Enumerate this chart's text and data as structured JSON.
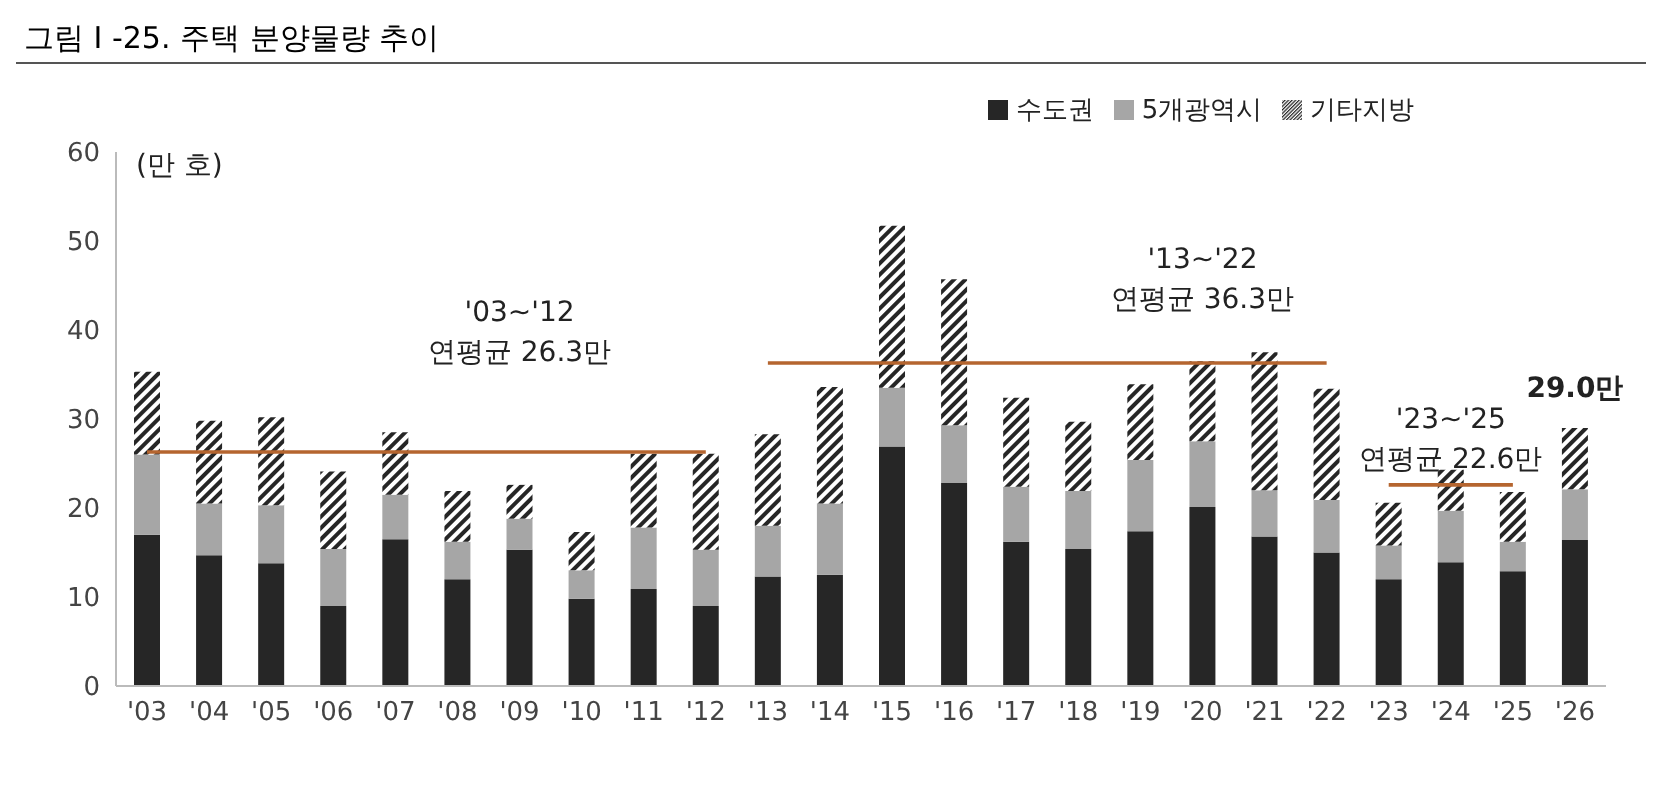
{
  "chart_data": {
    "type": "bar",
    "stacked": true,
    "title": "그림 I -25. 주택 분양물량 추이",
    "ylabel": "(만 호)",
    "categories": [
      "'03",
      "'04",
      "'05",
      "'06",
      "'07",
      "'08",
      "'09",
      "'10",
      "'11",
      "'12",
      "'13",
      "'14",
      "'15",
      "'16",
      "'17",
      "'18",
      "'19",
      "'20",
      "'21",
      "'22",
      "'23",
      "'24",
      "'25",
      "'26"
    ],
    "series": [
      {
        "name": "수도권",
        "color": "#262626",
        "values": [
          17,
          14.7,
          13.8,
          9,
          16.5,
          12,
          15.3,
          9.8,
          10.9,
          9,
          12.3,
          12.5,
          26.9,
          22.8,
          16.2,
          15.4,
          17.4,
          20.1,
          16.8,
          15,
          12,
          13.9,
          12.9,
          16.4
        ]
      },
      {
        "name": "5개광역시",
        "color": "#a6a6a6",
        "values": [
          9,
          5.8,
          6.5,
          6.4,
          5,
          4.2,
          3.5,
          3.2,
          6.9,
          6.3,
          5.7,
          8,
          6.6,
          6.5,
          6.2,
          6.5,
          8,
          7.4,
          5.2,
          5.9,
          3.8,
          5.8,
          3.3,
          5.7
        ]
      },
      {
        "name": "기타지방",
        "color": "#262626",
        "values": [
          9.3,
          9.3,
          9.9,
          8.7,
          7,
          5.7,
          3.8,
          4.3,
          8.3,
          10.8,
          10.3,
          13.1,
          18.2,
          16.4,
          10,
          7.8,
          8.5,
          9,
          15.5,
          12.5,
          4.8,
          4.6,
          5.6,
          6.9
        ]
      },
      {
        "type": "line",
        "color": "#b5652f",
        "values": [
          26.3,
          26.3,
          26.3,
          26.3,
          26.3,
          26.3,
          26.3,
          26.3,
          26.3,
          26.3,
          null,
          null,
          null,
          null,
          null,
          null,
          null,
          null,
          null,
          null,
          null,
          null,
          null,
          null
        ]
      },
      {
        "type": "line",
        "color": "#b5652f",
        "values": [
          null,
          null,
          null,
          null,
          null,
          null,
          null,
          null,
          null,
          null,
          36.3,
          36.3,
          36.3,
          36.3,
          36.3,
          36.3,
          36.3,
          36.3,
          36.3,
          36.3,
          null,
          null,
          null,
          null
        ]
      },
      {
        "type": "line",
        "color": "#b5652f",
        "values": [
          null,
          null,
          null,
          null,
          null,
          null,
          null,
          null,
          null,
          null,
          null,
          null,
          null,
          null,
          null,
          null,
          null,
          null,
          null,
          null,
          22.6,
          22.6,
          22.6,
          null
        ]
      }
    ],
    "ylim": [
      0,
      60
    ],
    "yticks": [
      0,
      10,
      20,
      30,
      40,
      50,
      60
    ],
    "grid": false,
    "legend": "top",
    "marker": "none",
    "annotations": [
      "'03~'12\n연평균 26.3만",
      "'13~'22\n연평균 36.3만",
      "'23~'25\n연평균 22.6만",
      "29.0만"
    ]
  }
}
